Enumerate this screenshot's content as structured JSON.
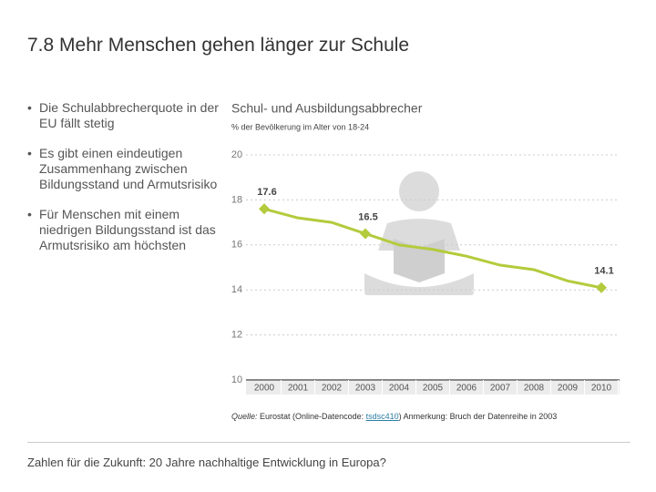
{
  "slide": {
    "title": "7.8 Mehr Menschen gehen länger zur Schule",
    "bullets": [
      "Die Schulabbrecherquote in der EU fällt stetig",
      "Es gibt einen eindeutigen Zusammenhang zwischen Bildungsstand und Armutsrisiko",
      "Für Menschen mit einem niedrigen Bildungsstand ist das Armutsrisiko am höchsten"
    ],
    "source": {
      "label": "Quelle:",
      "text": " Eurostat (Online-Datencode: ",
      "link": "tsdsc410",
      "note": ") Anmerkung: Bruch der Datenreihe in 2003"
    },
    "footer": "Zahlen für die Zukunft: 20 Jahre nachhaltige Entwicklung in Europa?"
  },
  "chart_data": {
    "type": "line",
    "title": "Schul- und Ausbildungsabbrecher",
    "subtitle": "% der Bevölkerung im Alter von 18-24",
    "x": [
      2000,
      2001,
      2002,
      2003,
      2004,
      2005,
      2006,
      2007,
      2008,
      2009,
      2010
    ],
    "values": [
      17.6,
      17.2,
      17.0,
      16.5,
      16.0,
      15.8,
      15.5,
      15.1,
      14.9,
      14.4,
      14.1
    ],
    "value_labels": [
      "17.6",
      null,
      null,
      "16.5",
      null,
      null,
      null,
      null,
      null,
      null,
      "14.1"
    ],
    "color": "#b3cb3c",
    "xlim": [
      1999,
      2011
    ],
    "xticks": [
      2000,
      2001,
      2002,
      2003,
      2004,
      2005,
      2006,
      2007,
      2008,
      2009,
      2010
    ],
    "ylim": [
      10,
      20
    ],
    "yticks": [
      10,
      12,
      14,
      16,
      18,
      20
    ],
    "grid": true
  }
}
